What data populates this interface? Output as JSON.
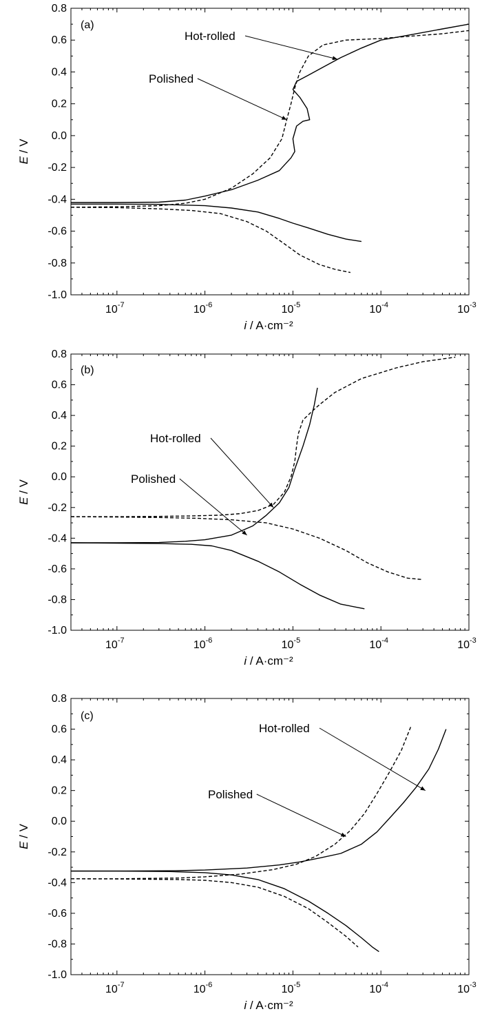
{
  "chart_data": [
    {
      "type": "line",
      "panel_label": "(a)",
      "xlabel": "i / A·cm⁻²",
      "ylabel": "E / V",
      "xscale": "log",
      "xlim": [
        3e-08,
        0.001
      ],
      "ylim": [
        -1.0,
        0.8
      ],
      "xticks": [
        1e-07,
        1e-06,
        1e-05,
        0.0001,
        0.001
      ],
      "xtick_labels": [
        {
          "base": "10",
          "exp": "-7"
        },
        {
          "base": "10",
          "exp": "-6"
        },
        {
          "base": "10",
          "exp": "-5"
        },
        {
          "base": "10",
          "exp": "-4"
        },
        {
          "base": "10",
          "exp": "-3"
        }
      ],
      "yticks": [
        -1.0,
        -0.8,
        -0.6,
        -0.4,
        -0.2,
        0.0,
        0.2,
        0.4,
        0.6,
        0.8
      ],
      "ytick_labels": [
        "-1.0",
        "-0.8",
        "-0.6",
        "-0.4",
        "-0.2",
        "0.0",
        "0.2",
        "0.4",
        "0.6",
        "0.8"
      ],
      "grid": false,
      "series": [
        {
          "style": "solid",
          "anodic": [
            [
              3e-08,
              -0.42
            ],
            [
              1e-07,
              -0.42
            ],
            [
              3e-07,
              -0.418
            ],
            [
              6e-07,
              -0.405
            ],
            [
              1e-06,
              -0.38
            ],
            [
              2e-06,
              -0.34
            ],
            [
              4e-06,
              -0.28
            ],
            [
              7e-06,
              -0.22
            ],
            [
              9.5e-06,
              -0.14
            ],
            [
              1.05e-05,
              -0.1
            ],
            [
              1e-05,
              -0.02
            ],
            [
              1.1e-05,
              0.06
            ],
            [
              1.3e-05,
              0.09
            ],
            [
              1.55e-05,
              0.1
            ],
            [
              1.45e-05,
              0.17
            ],
            [
              1.2e-05,
              0.24
            ],
            [
              1e-05,
              0.29
            ],
            [
              1.1e-05,
              0.34
            ],
            [
              1.5e-05,
              0.38
            ],
            [
              2.2e-05,
              0.43
            ],
            [
              3.5e-05,
              0.49
            ],
            [
              6e-05,
              0.55
            ],
            [
              0.0001,
              0.6
            ],
            [
              0.0002,
              0.63
            ],
            [
              0.0005,
              0.67
            ],
            [
              0.001,
              0.7
            ]
          ],
          "cathodic": [
            [
              3e-08,
              -0.43
            ],
            [
              1e-07,
              -0.43
            ],
            [
              3e-07,
              -0.432
            ],
            [
              1e-06,
              -0.44
            ],
            [
              2e-06,
              -0.455
            ],
            [
              4e-06,
              -0.48
            ],
            [
              7e-06,
              -0.52
            ],
            [
              1e-05,
              -0.55
            ],
            [
              1.5e-05,
              -0.58
            ],
            [
              2.5e-05,
              -0.62
            ],
            [
              4e-05,
              -0.65
            ],
            [
              6e-05,
              -0.665
            ]
          ]
        },
        {
          "style": "dashed",
          "anodic": [
            [
              3e-08,
              -0.45
            ],
            [
              1e-07,
              -0.447
            ],
            [
              3e-07,
              -0.44
            ],
            [
              6e-07,
              -0.425
            ],
            [
              1e-06,
              -0.4
            ],
            [
              2e-06,
              -0.33
            ],
            [
              3.5e-06,
              -0.24
            ],
            [
              5.5e-06,
              -0.14
            ],
            [
              7.5e-06,
              -0.02
            ],
            [
              8.5e-06,
              0.1
            ],
            [
              9.5e-06,
              0.2
            ],
            [
              1.05e-05,
              0.3
            ],
            [
              1.2e-05,
              0.4
            ],
            [
              1.5e-05,
              0.5
            ],
            [
              2.2e-05,
              0.57
            ],
            [
              4e-05,
              0.6
            ],
            [
              0.0001,
              0.61
            ],
            [
              0.0005,
              0.64
            ],
            [
              0.001,
              0.66
            ]
          ],
          "cathodic": [
            [
              3e-08,
              -0.45
            ],
            [
              1e-07,
              -0.452
            ],
            [
              3e-07,
              -0.46
            ],
            [
              7e-07,
              -0.47
            ],
            [
              1.5e-06,
              -0.49
            ],
            [
              3e-06,
              -0.54
            ],
            [
              5e-06,
              -0.6
            ],
            [
              8e-06,
              -0.68
            ],
            [
              1.2e-05,
              -0.75
            ],
            [
              2e-05,
              -0.81
            ],
            [
              3e-05,
              -0.84
            ],
            [
              4.5e-05,
              -0.86
            ]
          ]
        }
      ],
      "annotations": [
        {
          "text": "Hot-rolled",
          "at": [
            3.2e-05,
            0.48
          ]
        },
        {
          "text": "Polished",
          "at": [
            8.5e-06,
            0.1
          ]
        }
      ]
    },
    {
      "type": "line",
      "panel_label": "(b)",
      "xlabel": "i / A·cm⁻²",
      "ylabel": "E / V",
      "xscale": "log",
      "xlim": [
        3e-08,
        0.001
      ],
      "ylim": [
        -1.0,
        0.8
      ],
      "xticks": [
        1e-07,
        1e-06,
        1e-05,
        0.0001,
        0.001
      ],
      "xtick_labels": [
        {
          "base": "10",
          "exp": "-7"
        },
        {
          "base": "10",
          "exp": "-6"
        },
        {
          "base": "10",
          "exp": "-5"
        },
        {
          "base": "10",
          "exp": "-4"
        },
        {
          "base": "10",
          "exp": "-3"
        }
      ],
      "yticks": [
        -1.0,
        -0.8,
        -0.6,
        -0.4,
        -0.2,
        0.0,
        0.2,
        0.4,
        0.6,
        0.8
      ],
      "ytick_labels": [
        "-1.0",
        "-0.8",
        "-0.6",
        "-0.4",
        "-0.2",
        "0.0",
        "0.2",
        "0.4",
        "0.6",
        "0.8"
      ],
      "grid": false,
      "series": [
        {
          "style": "solid",
          "anodic": [
            [
              3e-08,
              -0.43
            ],
            [
              1e-07,
              -0.43
            ],
            [
              3e-07,
              -0.428
            ],
            [
              6e-07,
              -0.42
            ],
            [
              1e-06,
              -0.41
            ],
            [
              2e-06,
              -0.38
            ],
            [
              3.5e-06,
              -0.32
            ],
            [
              5e-06,
              -0.25
            ],
            [
              7e-06,
              -0.17
            ],
            [
              9e-06,
              -0.07
            ],
            [
              1.05e-05,
              0.05
            ],
            [
              1.3e-05,
              0.2
            ],
            [
              1.55e-05,
              0.34
            ],
            [
              1.75e-05,
              0.47
            ],
            [
              1.9e-05,
              0.58
            ]
          ],
          "cathodic": [
            [
              3e-08,
              -0.43
            ],
            [
              1e-07,
              -0.432
            ],
            [
              3e-07,
              -0.435
            ],
            [
              7e-07,
              -0.44
            ],
            [
              1.2e-06,
              -0.45
            ],
            [
              2e-06,
              -0.48
            ],
            [
              4e-06,
              -0.55
            ],
            [
              7e-06,
              -0.62
            ],
            [
              1.2e-05,
              -0.7
            ],
            [
              2e-05,
              -0.77
            ],
            [
              3.5e-05,
              -0.83
            ],
            [
              6.5e-05,
              -0.86
            ]
          ]
        },
        {
          "style": "dashed",
          "anodic": [
            [
              3e-08,
              -0.26
            ],
            [
              1e-07,
              -0.26
            ],
            [
              3e-07,
              -0.258
            ],
            [
              7e-07,
              -0.255
            ],
            [
              1.5e-06,
              -0.25
            ],
            [
              2.5e-06,
              -0.24
            ],
            [
              4e-06,
              -0.22
            ],
            [
              6e-06,
              -0.18
            ],
            [
              8e-06,
              -0.1
            ],
            [
              9.5e-06,
              0.0
            ],
            [
              1.05e-05,
              0.1
            ],
            [
              1.1e-05,
              0.2
            ],
            [
              1.15e-05,
              0.28
            ],
            [
              1.3e-05,
              0.37
            ],
            [
              1.6e-05,
              0.42
            ],
            [
              2e-05,
              0.47
            ],
            [
              3e-05,
              0.55
            ],
            [
              6e-05,
              0.64
            ],
            [
              0.00015,
              0.71
            ],
            [
              0.0003,
              0.75
            ],
            [
              0.0007,
              0.78
            ]
          ],
          "cathodic": [
            [
              3e-08,
              -0.26
            ],
            [
              1e-07,
              -0.262
            ],
            [
              3e-07,
              -0.265
            ],
            [
              8e-07,
              -0.27
            ],
            [
              2e-06,
              -0.28
            ],
            [
              5e-06,
              -0.3
            ],
            [
              1e-05,
              -0.34
            ],
            [
              2e-05,
              -0.4
            ],
            [
              4e-05,
              -0.48
            ],
            [
              7e-05,
              -0.56
            ],
            [
              0.00012,
              -0.62
            ],
            [
              0.0002,
              -0.66
            ],
            [
              0.0003,
              -0.67
            ]
          ]
        }
      ],
      "annotations": [
        {
          "text": "Hot-rolled",
          "at": [
            6e-06,
            -0.2
          ]
        },
        {
          "text": "Polished",
          "at": [
            3e-06,
            -0.38
          ]
        }
      ]
    },
    {
      "type": "line",
      "panel_label": "(c)",
      "xlabel": "i / A·cm⁻²",
      "ylabel": "E / V",
      "xscale": "log",
      "xlim": [
        3e-08,
        0.001
      ],
      "ylim": [
        -1.0,
        0.8
      ],
      "xticks": [
        1e-07,
        1e-06,
        1e-05,
        0.0001,
        0.001
      ],
      "xtick_labels": [
        {
          "base": "10",
          "exp": "-7"
        },
        {
          "base": "10",
          "exp": "-6"
        },
        {
          "base": "10",
          "exp": "-5"
        },
        {
          "base": "10",
          "exp": "-4"
        },
        {
          "base": "10",
          "exp": "-3"
        }
      ],
      "yticks": [
        -1.0,
        -0.8,
        -0.6,
        -0.4,
        -0.2,
        0.0,
        0.2,
        0.4,
        0.6,
        0.8
      ],
      "ytick_labels": [
        "-1.0",
        "-0.8",
        "-0.6",
        "-0.4",
        "-0.2",
        "0.0",
        "0.2",
        "0.4",
        "0.6",
        "0.8"
      ],
      "grid": false,
      "series": [
        {
          "style": "solid",
          "anodic": [
            [
              3e-08,
              -0.325
            ],
            [
              1e-07,
              -0.325
            ],
            [
              5e-07,
              -0.322
            ],
            [
              1e-06,
              -0.318
            ],
            [
              3e-06,
              -0.305
            ],
            [
              7e-06,
              -0.285
            ],
            [
              1.2e-05,
              -0.265
            ],
            [
              2e-05,
              -0.24
            ],
            [
              3.5e-05,
              -0.21
            ],
            [
              6e-05,
              -0.15
            ],
            [
              9e-05,
              -0.07
            ],
            [
              0.00013,
              0.03
            ],
            [
              0.00018,
              0.12
            ],
            [
              0.00025,
              0.22
            ],
            [
              0.00035,
              0.34
            ],
            [
              0.00045,
              0.47
            ],
            [
              0.00055,
              0.6
            ]
          ],
          "cathodic": [
            [
              3e-08,
              -0.325
            ],
            [
              1e-07,
              -0.325
            ],
            [
              4e-07,
              -0.328
            ],
            [
              1e-06,
              -0.335
            ],
            [
              2e-06,
              -0.35
            ],
            [
              4e-06,
              -0.38
            ],
            [
              8e-06,
              -0.44
            ],
            [
              1.5e-05,
              -0.52
            ],
            [
              2.5e-05,
              -0.6
            ],
            [
              4e-05,
              -0.68
            ],
            [
              6e-05,
              -0.76
            ],
            [
              8e-05,
              -0.82
            ],
            [
              9.5e-05,
              -0.85
            ]
          ]
        },
        {
          "style": "dashed",
          "anodic": [
            [
              3e-08,
              -0.375
            ],
            [
              1e-07,
              -0.375
            ],
            [
              5e-07,
              -0.37
            ],
            [
              1e-06,
              -0.362
            ],
            [
              2.5e-06,
              -0.345
            ],
            [
              6e-06,
              -0.315
            ],
            [
              1.1e-05,
              -0.28
            ],
            [
              1.8e-05,
              -0.23
            ],
            [
              3e-05,
              -0.15
            ],
            [
              4.5e-05,
              -0.06
            ],
            [
              6.5e-05,
              0.05
            ],
            [
              9e-05,
              0.18
            ],
            [
              0.000125,
              0.32
            ],
            [
              0.00017,
              0.46
            ],
            [
              0.00022,
              0.62
            ]
          ],
          "cathodic": [
            [
              3e-08,
              -0.375
            ],
            [
              1e-07,
              -0.376
            ],
            [
              5e-07,
              -0.38
            ],
            [
              1e-06,
              -0.385
            ],
            [
              2e-06,
              -0.4
            ],
            [
              4e-06,
              -0.43
            ],
            [
              8e-06,
              -0.49
            ],
            [
              1.5e-05,
              -0.57
            ],
            [
              2.5e-05,
              -0.66
            ],
            [
              4e-05,
              -0.75
            ],
            [
              5.5e-05,
              -0.82
            ]
          ]
        }
      ],
      "annotations": [
        {
          "text": "Hot-rolled",
          "at": [
            0.00032,
            0.2
          ]
        },
        {
          "text": "Polished",
          "at": [
            4e-05,
            -0.1
          ]
        }
      ]
    }
  ]
}
